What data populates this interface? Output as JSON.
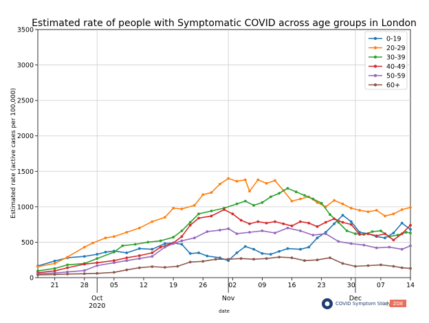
{
  "chart_data": {
    "type": "line",
    "title": "Estimated rate of people with Symptomatic COVID across age groups in London",
    "xlabel": "date",
    "ylabel": "Estimated rate (active cases per 100,000)",
    "ylim": [
      0,
      3500
    ],
    "y_ticks": [
      "0",
      "500",
      "1000",
      "1500",
      "2000",
      "2500",
      "3000",
      "3500"
    ],
    "x_start": "2020-09-17",
    "x_end": "2020-12-14",
    "x_ticks": [
      {
        "date": "2020-09-21",
        "label": "21"
      },
      {
        "date": "2020-09-28",
        "label": "28"
      },
      {
        "date": "2020-10-05",
        "label": "05"
      },
      {
        "date": "2020-10-12",
        "label": "12"
      },
      {
        "date": "2020-10-19",
        "label": "19"
      },
      {
        "date": "2020-10-26",
        "label": "26"
      },
      {
        "date": "2020-11-02",
        "label": "02"
      },
      {
        "date": "2020-11-09",
        "label": "09"
      },
      {
        "date": "2020-11-16",
        "label": "16"
      },
      {
        "date": "2020-11-23",
        "label": "23"
      },
      {
        "date": "2020-11-30",
        "label": "30"
      },
      {
        "date": "2020-12-07",
        "label": "07"
      },
      {
        "date": "2020-12-14",
        "label": "14"
      }
    ],
    "month_labels": [
      {
        "date": "2020-10-01",
        "line1": "Oct",
        "line2": "2020"
      },
      {
        "date": "2020-11-01",
        "line1": "Nov",
        "line2": ""
      },
      {
        "date": "2020-12-01",
        "line1": "Dec",
        "line2": ""
      }
    ],
    "grid": true,
    "legend_position": "top-right",
    "series": [
      {
        "name": "0-19",
        "color": "#1f77b4",
        "points": [
          [
            "2020-09-17",
            165
          ],
          [
            "2020-09-21",
            235
          ],
          [
            "2020-09-24",
            280
          ],
          [
            "2020-09-28",
            300
          ],
          [
            "2020-10-01",
            330
          ],
          [
            "2020-10-03",
            360
          ],
          [
            "2020-10-05",
            375
          ],
          [
            "2020-10-08",
            350
          ],
          [
            "2020-10-11",
            410
          ],
          [
            "2020-10-14",
            400
          ],
          [
            "2020-10-17",
            480
          ],
          [
            "2020-10-19",
            490
          ],
          [
            "2020-10-21",
            470
          ],
          [
            "2020-10-23",
            340
          ],
          [
            "2020-10-25",
            350
          ],
          [
            "2020-10-27",
            305
          ],
          [
            "2020-10-30",
            280
          ],
          [
            "2020-11-01",
            240
          ],
          [
            "2020-11-03",
            350
          ],
          [
            "2020-11-05",
            440
          ],
          [
            "2020-11-07",
            400
          ],
          [
            "2020-11-09",
            340
          ],
          [
            "2020-11-11",
            330
          ],
          [
            "2020-11-13",
            370
          ],
          [
            "2020-11-15",
            410
          ],
          [
            "2020-11-18",
            400
          ],
          [
            "2020-11-20",
            430
          ],
          [
            "2020-11-22",
            560
          ],
          [
            "2020-11-24",
            640
          ],
          [
            "2020-11-26",
            760
          ],
          [
            "2020-11-28",
            880
          ],
          [
            "2020-11-30",
            790
          ],
          [
            "2020-12-02",
            640
          ],
          [
            "2020-12-04",
            620
          ],
          [
            "2020-12-06",
            580
          ],
          [
            "2020-12-08",
            560
          ],
          [
            "2020-12-10",
            630
          ],
          [
            "2020-12-12",
            770
          ],
          [
            "2020-12-14",
            680
          ]
        ]
      },
      {
        "name": "20-29",
        "color": "#ff7f0e",
        "points": [
          [
            "2020-09-17",
            155
          ],
          [
            "2020-09-21",
            200
          ],
          [
            "2020-09-24",
            290
          ],
          [
            "2020-09-28",
            430
          ],
          [
            "2020-09-30",
            490
          ],
          [
            "2020-10-03",
            560
          ],
          [
            "2020-10-05",
            580
          ],
          [
            "2020-10-08",
            640
          ],
          [
            "2020-10-11",
            700
          ],
          [
            "2020-10-14",
            790
          ],
          [
            "2020-10-17",
            850
          ],
          [
            "2020-10-19",
            980
          ],
          [
            "2020-10-21",
            970
          ],
          [
            "2020-10-24",
            1020
          ],
          [
            "2020-10-26",
            1170
          ],
          [
            "2020-10-28",
            1200
          ],
          [
            "2020-10-30",
            1320
          ],
          [
            "2020-11-01",
            1400
          ],
          [
            "2020-11-03",
            1360
          ],
          [
            "2020-11-05",
            1380
          ],
          [
            "2020-11-06",
            1220
          ],
          [
            "2020-11-08",
            1380
          ],
          [
            "2020-11-10",
            1330
          ],
          [
            "2020-11-12",
            1370
          ],
          [
            "2020-11-14",
            1230
          ],
          [
            "2020-11-16",
            1080
          ],
          [
            "2020-11-18",
            1110
          ],
          [
            "2020-11-20",
            1140
          ],
          [
            "2020-11-22",
            1060
          ],
          [
            "2020-11-24",
            1000
          ],
          [
            "2020-11-26",
            1090
          ],
          [
            "2020-11-28",
            1040
          ],
          [
            "2020-11-30",
            980
          ],
          [
            "2020-12-02",
            950
          ],
          [
            "2020-12-04",
            930
          ],
          [
            "2020-12-06",
            950
          ],
          [
            "2020-12-08",
            870
          ],
          [
            "2020-12-10",
            900
          ],
          [
            "2020-12-12",
            960
          ],
          [
            "2020-12-14",
            990
          ]
        ]
      },
      {
        "name": "30-39",
        "color": "#2ca02c",
        "points": [
          [
            "2020-09-17",
            95
          ],
          [
            "2020-09-21",
            130
          ],
          [
            "2020-09-24",
            180
          ],
          [
            "2020-09-28",
            200
          ],
          [
            "2020-10-01",
            270
          ],
          [
            "2020-10-05",
            360
          ],
          [
            "2020-10-07",
            450
          ],
          [
            "2020-10-10",
            470
          ],
          [
            "2020-10-13",
            500
          ],
          [
            "2020-10-16",
            520
          ],
          [
            "2020-10-19",
            570
          ],
          [
            "2020-10-21",
            660
          ],
          [
            "2020-10-23",
            780
          ],
          [
            "2020-10-25",
            900
          ],
          [
            "2020-10-28",
            940
          ],
          [
            "2020-10-31",
            980
          ],
          [
            "2020-11-03",
            1040
          ],
          [
            "2020-11-05",
            1080
          ],
          [
            "2020-11-07",
            1020
          ],
          [
            "2020-11-09",
            1060
          ],
          [
            "2020-11-11",
            1140
          ],
          [
            "2020-11-13",
            1190
          ],
          [
            "2020-11-15",
            1260
          ],
          [
            "2020-11-17",
            1210
          ],
          [
            "2020-11-19",
            1160
          ],
          [
            "2020-11-21",
            1110
          ],
          [
            "2020-11-23",
            1050
          ],
          [
            "2020-11-25",
            890
          ],
          [
            "2020-11-27",
            780
          ],
          [
            "2020-11-29",
            660
          ],
          [
            "2020-12-01",
            620
          ],
          [
            "2020-12-03",
            610
          ],
          [
            "2020-12-05",
            650
          ],
          [
            "2020-12-07",
            660
          ],
          [
            "2020-12-09",
            580
          ],
          [
            "2020-12-11",
            600
          ],
          [
            "2020-12-13",
            640
          ],
          [
            "2020-12-14",
            630
          ]
        ]
      },
      {
        "name": "40-49",
        "color": "#d62728",
        "points": [
          [
            "2020-09-17",
            70
          ],
          [
            "2020-09-21",
            95
          ],
          [
            "2020-09-24",
            140
          ],
          [
            "2020-09-28",
            190
          ],
          [
            "2020-10-01",
            210
          ],
          [
            "2020-10-05",
            240
          ],
          [
            "2020-10-08",
            280
          ],
          [
            "2020-10-11",
            310
          ],
          [
            "2020-10-14",
            350
          ],
          [
            "2020-10-16",
            430
          ],
          [
            "2020-10-19",
            490
          ],
          [
            "2020-10-21",
            580
          ],
          [
            "2020-10-23",
            740
          ],
          [
            "2020-10-25",
            840
          ],
          [
            "2020-10-28",
            870
          ],
          [
            "2020-10-31",
            960
          ],
          [
            "2020-11-02",
            900
          ],
          [
            "2020-11-04",
            810
          ],
          [
            "2020-11-06",
            760
          ],
          [
            "2020-11-08",
            790
          ],
          [
            "2020-11-10",
            770
          ],
          [
            "2020-11-12",
            790
          ],
          [
            "2020-11-14",
            760
          ],
          [
            "2020-11-16",
            730
          ],
          [
            "2020-11-18",
            790
          ],
          [
            "2020-11-20",
            770
          ],
          [
            "2020-11-22",
            720
          ],
          [
            "2020-11-24",
            780
          ],
          [
            "2020-11-26",
            830
          ],
          [
            "2020-11-28",
            780
          ],
          [
            "2020-11-30",
            750
          ],
          [
            "2020-12-02",
            610
          ],
          [
            "2020-12-04",
            620
          ],
          [
            "2020-12-06",
            590
          ],
          [
            "2020-12-08",
            620
          ],
          [
            "2020-12-10",
            530
          ],
          [
            "2020-12-12",
            620
          ],
          [
            "2020-12-14",
            740
          ]
        ]
      },
      {
        "name": "50-59",
        "color": "#9467bd",
        "points": [
          [
            "2020-09-17",
            55
          ],
          [
            "2020-09-21",
            65
          ],
          [
            "2020-09-24",
            80
          ],
          [
            "2020-09-28",
            100
          ],
          [
            "2020-10-01",
            170
          ],
          [
            "2020-10-05",
            210
          ],
          [
            "2020-10-08",
            240
          ],
          [
            "2020-10-11",
            270
          ],
          [
            "2020-10-14",
            300
          ],
          [
            "2020-10-17",
            430
          ],
          [
            "2020-10-19",
            480
          ],
          [
            "2020-10-21",
            520
          ],
          [
            "2020-10-24",
            560
          ],
          [
            "2020-10-27",
            650
          ],
          [
            "2020-10-30",
            670
          ],
          [
            "2020-11-01",
            690
          ],
          [
            "2020-11-03",
            620
          ],
          [
            "2020-11-06",
            640
          ],
          [
            "2020-11-09",
            660
          ],
          [
            "2020-11-12",
            630
          ],
          [
            "2020-11-15",
            700
          ],
          [
            "2020-11-18",
            660
          ],
          [
            "2020-11-21",
            600
          ],
          [
            "2020-11-24",
            620
          ],
          [
            "2020-11-27",
            510
          ],
          [
            "2020-11-30",
            480
          ],
          [
            "2020-12-03",
            460
          ],
          [
            "2020-12-06",
            420
          ],
          [
            "2020-12-09",
            430
          ],
          [
            "2020-12-12",
            400
          ],
          [
            "2020-12-14",
            450
          ]
        ]
      },
      {
        "name": "60+",
        "color": "#8c564b",
        "points": [
          [
            "2020-09-17",
            40
          ],
          [
            "2020-09-21",
            45
          ],
          [
            "2020-09-24",
            50
          ],
          [
            "2020-09-28",
            55
          ],
          [
            "2020-10-01",
            60
          ],
          [
            "2020-10-05",
            75
          ],
          [
            "2020-10-08",
            110
          ],
          [
            "2020-10-11",
            140
          ],
          [
            "2020-10-14",
            155
          ],
          [
            "2020-10-17",
            145
          ],
          [
            "2020-10-20",
            160
          ],
          [
            "2020-10-23",
            220
          ],
          [
            "2020-10-26",
            230
          ],
          [
            "2020-10-29",
            260
          ],
          [
            "2020-11-01",
            260
          ],
          [
            "2020-11-04",
            270
          ],
          [
            "2020-11-07",
            260
          ],
          [
            "2020-11-10",
            270
          ],
          [
            "2020-11-13",
            290
          ],
          [
            "2020-11-16",
            280
          ],
          [
            "2020-11-19",
            240
          ],
          [
            "2020-11-22",
            250
          ],
          [
            "2020-11-25",
            280
          ],
          [
            "2020-11-28",
            200
          ],
          [
            "2020-12-01",
            160
          ],
          [
            "2020-12-04",
            170
          ],
          [
            "2020-12-07",
            180
          ],
          [
            "2020-12-10",
            160
          ],
          [
            "2020-12-12",
            140
          ],
          [
            "2020-12-14",
            130
          ]
        ]
      }
    ]
  },
  "brand": {
    "study_name": "COVID Symptom Study",
    "by_label": "by",
    "zoe_label": "ZOE"
  }
}
